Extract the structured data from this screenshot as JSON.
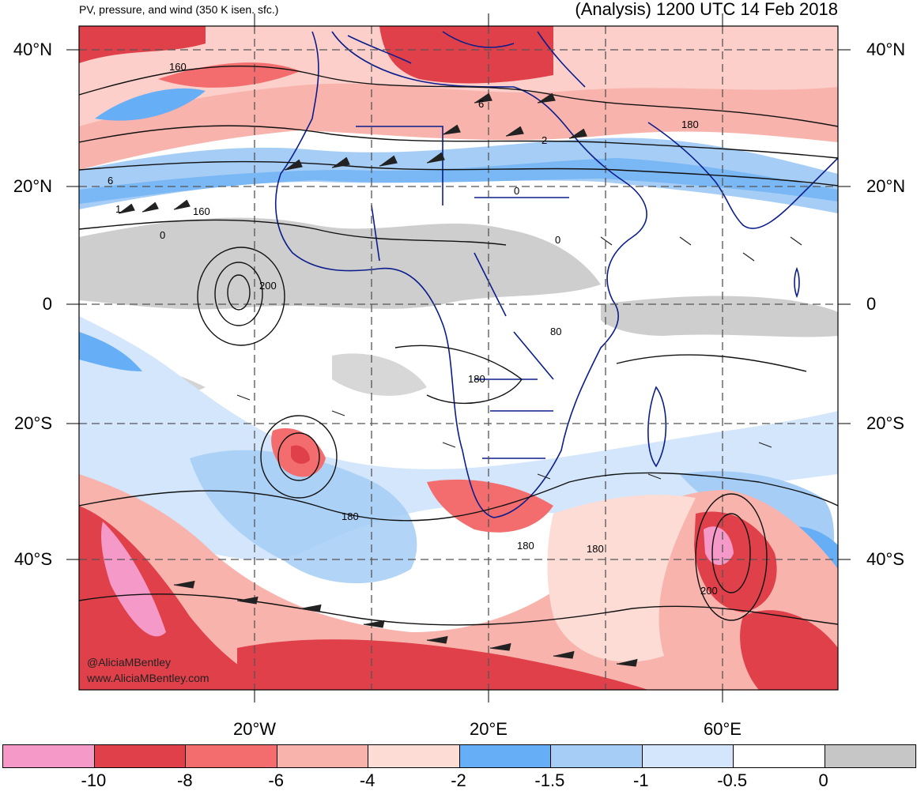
{
  "header": {
    "subtitle": "PV, pressure, and wind (350 K isen. sfc.)",
    "title": "(Analysis) 1200 UTC 14 Feb 2018"
  },
  "axes": {
    "lat_labels": [
      "40°N",
      "20°N",
      "0",
      "20°S",
      "40°S"
    ],
    "lon_labels": [
      "20°W",
      "20°E",
      "60°E"
    ]
  },
  "contour_labels": [
    "160",
    "6",
    "2",
    "180",
    "6",
    "1",
    "160",
    "0",
    "0",
    "0",
    "200",
    "180",
    "80",
    "180",
    "180",
    "180",
    "200"
  ],
  "colorbar": {
    "colors": [
      "#f59ac8",
      "#e0404a",
      "#f36d6e",
      "#f9b3ad",
      "#fddcd5",
      "#66aef5",
      "#a5cdf6",
      "#d3e6fb",
      "#ffffff",
      "#c6c6c6"
    ],
    "labels": [
      "-10",
      "-8",
      "-6",
      "-4",
      "-2",
      "-1.5",
      "-1",
      "-0.5",
      "0"
    ]
  },
  "credits": {
    "handle": "@AliciaMBentley",
    "site": "www.AliciaMBentley.com"
  }
}
